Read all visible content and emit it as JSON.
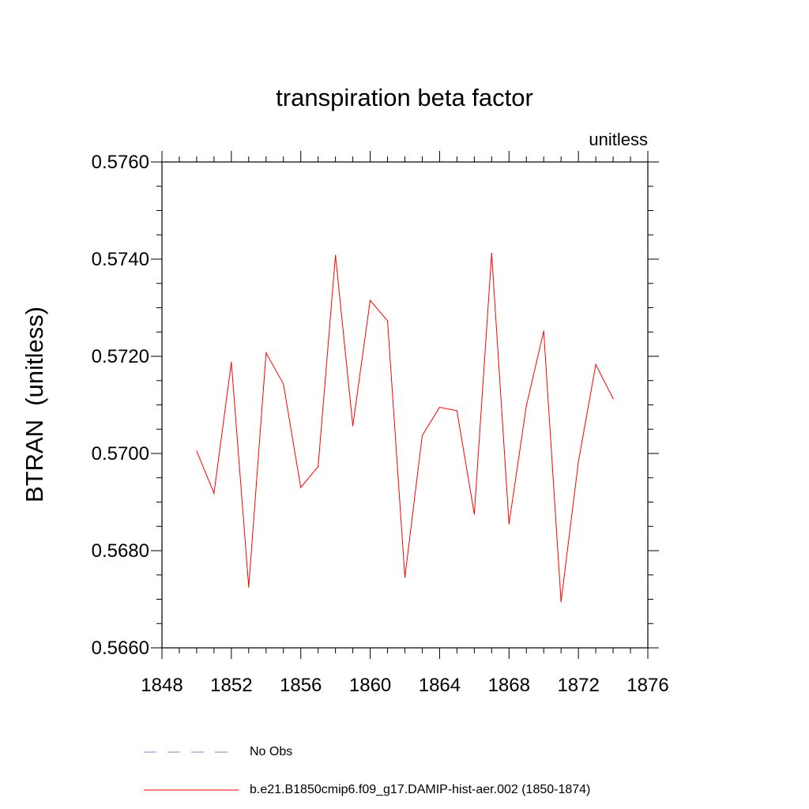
{
  "chart_data": {
    "type": "line",
    "title": "transpiration beta factor",
    "units_label": "unitless",
    "xlabel": "",
    "ylabel": "BTRAN  (unitless)",
    "xlim": [
      1848,
      1876
    ],
    "ylim": [
      0.566,
      0.576
    ],
    "x_ticks": [
      "1848",
      "1852",
      "1856",
      "1860",
      "1864",
      "1868",
      "1872",
      "1876"
    ],
    "y_ticks": [
      "0.5660",
      "0.5680",
      "0.5700",
      "0.5720",
      "0.5740",
      "0.5760"
    ],
    "grid": false,
    "legend_position": "bottom",
    "series": [
      {
        "name": "b.e21.B1850cmip6.f09_g17.DAMIP-hist-aer.002 (1850-1874)",
        "color": "#ff0000",
        "style": "solid",
        "x": [
          1850,
          1851,
          1852,
          1853,
          1854,
          1855,
          1856,
          1857,
          1858,
          1859,
          1860,
          1861,
          1862,
          1863,
          1864,
          1865,
          1866,
          1867,
          1868,
          1869,
          1870,
          1871,
          1872,
          1873,
          1874
        ],
        "values": [
          0.57005,
          0.56918,
          0.57188,
          0.56725,
          0.57207,
          0.57143,
          0.5693,
          0.56973,
          0.57408,
          0.57057,
          0.57315,
          0.57273,
          0.56745,
          0.57037,
          0.57095,
          0.57088,
          0.56875,
          0.57412,
          0.56855,
          0.57098,
          0.57252,
          0.56695,
          0.56983,
          0.57183,
          0.57113
        ]
      },
      {
        "name": "No Obs",
        "color": "#8a7fc8",
        "style": "dashed",
        "x": [],
        "values": []
      }
    ]
  }
}
